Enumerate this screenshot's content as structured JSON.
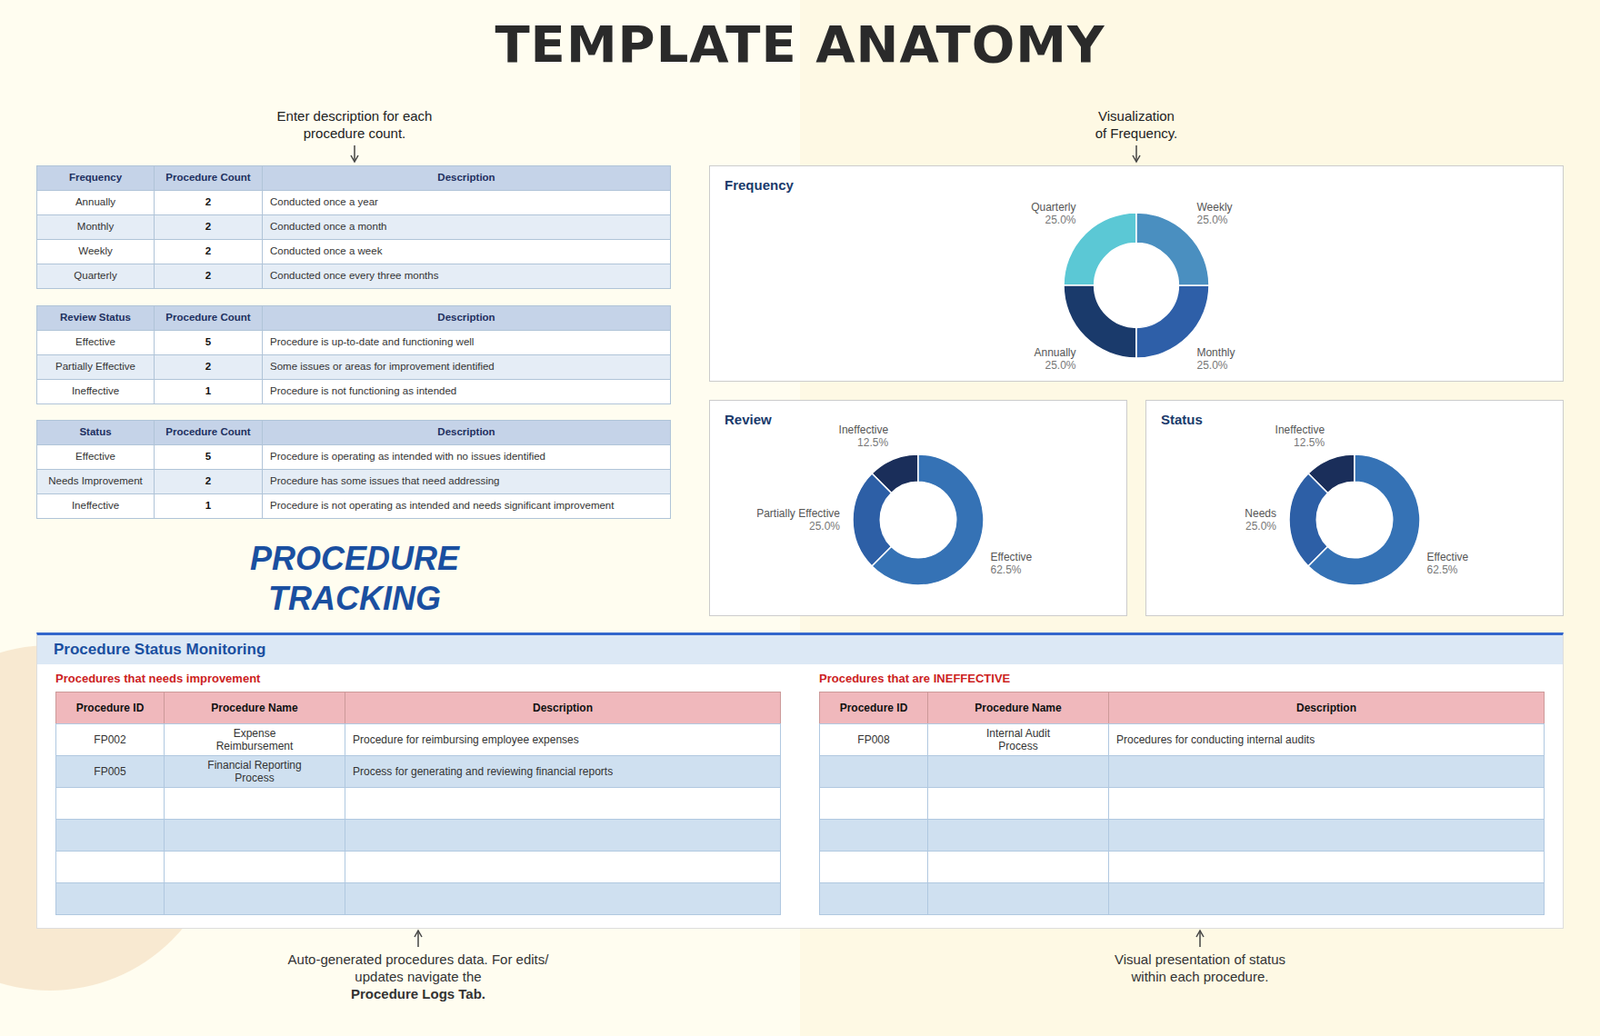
{
  "title": "TEMPLATE ANATOMY",
  "annotations": [
    "Enter description for each\nprocedure count.",
    "Visualization\nof Frequency.",
    [
      "Auto-generated procedures data. For edits/\nupdates navigate the ",
      "Procedure Logs Tab."
    ],
    "Visual presentation of status\nwithin each procedure."
  ],
  "heading": [
    "PROCEDURE",
    "TRACKING"
  ],
  "tables": [
    {
      "headers": [
        "Frequency",
        "Procedure Count",
        "Description"
      ],
      "rows": [
        [
          "Annually",
          "2",
          "Conducted once a year"
        ],
        [
          "Monthly",
          "2",
          "Conducted once a month"
        ],
        [
          "Weekly",
          "2",
          "Conducted once a week"
        ],
        [
          "Quarterly",
          "2",
          "Conducted once every three months"
        ]
      ]
    },
    {
      "headers": [
        "Review Status",
        "Procedure Count",
        "Description"
      ],
      "rows": [
        [
          "Effective",
          "5",
          "Procedure is up-to-date and functioning well"
        ],
        [
          "Partially Effective",
          "2",
          "Some issues or areas for improvement identified"
        ],
        [
          "Ineffective",
          "1",
          "Procedure is not functioning as intended"
        ]
      ]
    },
    {
      "headers": [
        "Status",
        "Procedure Count",
        "Description"
      ],
      "rows": [
        [
          "Effective",
          "5",
          "Procedure is operating as intended with no issues identified"
        ],
        [
          "Needs Improvement",
          "2",
          "Procedure has some issues that need addressing"
        ],
        [
          "Ineffective",
          "1",
          "Procedure is not operating as intended and needs significant improvement"
        ]
      ]
    }
  ],
  "monitoring": {
    "title": "Procedure Status Monitoring",
    "tables": [
      {
        "label": "Procedures that needs improvement",
        "headers": [
          "Procedure ID",
          "Procedure Name",
          "Description"
        ],
        "rows": [
          [
            "FP002",
            "Expense\nReimbursement",
            "Procedure for reimbursing employee expenses"
          ],
          [
            "FP005",
            "Financial Reporting\nProcess",
            "Process for generating and reviewing financial reports"
          ],
          [
            null,
            null,
            null
          ],
          [
            null,
            null,
            null
          ],
          [
            null,
            null,
            null
          ],
          [
            null,
            null,
            null
          ]
        ]
      },
      {
        "label": "Procedures that are INEFFECTIVE",
        "headers": [
          "Procedure ID",
          "Procedure Name",
          "Description"
        ],
        "rows": [
          [
            "FP008",
            "Internal Audit\nProcess",
            "Procedures for conducting internal audits"
          ],
          [
            null,
            null,
            null
          ],
          [
            null,
            null,
            null
          ],
          [
            null,
            null,
            null
          ],
          [
            null,
            null,
            null
          ],
          [
            null,
            null,
            null
          ]
        ]
      }
    ]
  },
  "chart_data": [
    {
      "type": "donut",
      "title": "Frequency",
      "categories": [
        "Quarterly",
        "Annually",
        "Monthly",
        "Weekly"
      ],
      "values": [
        25.0,
        25.0,
        25.0,
        25.0
      ],
      "value_labels": [
        "25.0%",
        "25.0%",
        "25.0%",
        "25.0%"
      ],
      "colors": [
        "#5bc8d5",
        "#1a3a6b",
        "#2e5fa8",
        "#4a8fc0"
      ]
    },
    {
      "type": "donut",
      "title": "Review",
      "categories": [
        "Ineffective",
        "Partially Effective",
        "Effective"
      ],
      "values": [
        12.5,
        25.0,
        62.5
      ],
      "value_labels": [
        "12.5%",
        "25.0%",
        "62.5%"
      ],
      "colors": [
        "#1a2e5a",
        "#2d5fa6",
        "#3572b5"
      ]
    },
    {
      "type": "donut",
      "title": "Status",
      "categories": [
        "Ineffective",
        "Needs",
        "Effective"
      ],
      "values": [
        12.5,
        25.0,
        62.5
      ],
      "value_labels": [
        "12.5%",
        "25.0%",
        "62.5%"
      ],
      "colors": [
        "#1a2e5a",
        "#2d5fa6",
        "#3572b5"
      ]
    }
  ]
}
